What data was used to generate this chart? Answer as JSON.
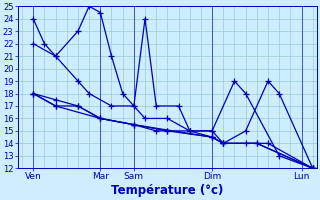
{
  "title": "Température (°c)",
  "bg_color": "#cceeff",
  "line_color": "#0000bb",
  "grid_color": "#99cccc",
  "ylim": [
    12,
    25
  ],
  "yticks": [
    12,
    13,
    14,
    15,
    16,
    17,
    18,
    19,
    20,
    21,
    22,
    23,
    24,
    25
  ],
  "xlim": [
    -0.2,
    13.2
  ],
  "x_tick_positions": [
    0.5,
    3.5,
    5.0,
    8.5,
    12.5
  ],
  "x_tick_labels": [
    "Ven",
    "Mar",
    "Sam",
    "Dim",
    "Lun"
  ],
  "xlabel": "Température (°c)",
  "marker": "+",
  "markersize": 4,
  "linewidth": 0.9,
  "series_x": [
    [
      0.5,
      1.0,
      1.5,
      2.5,
      3.0,
      3.5,
      4.0,
      4.5,
      5.0,
      5.5,
      6.0,
      7.0,
      7.5,
      8.5,
      9.5,
      10.0,
      11.5,
      13.0
    ],
    [
      0.5,
      1.5,
      2.5,
      3.0,
      4.0,
      5.0,
      5.5,
      6.5,
      7.5,
      8.5,
      9.0,
      10.0,
      11.0,
      11.5,
      13.0
    ],
    [
      0.5,
      1.5,
      2.5,
      3.5,
      5.0,
      6.0,
      6.5,
      7.5,
      8.5,
      9.0,
      10.0,
      11.0,
      13.0
    ],
    [
      0.5,
      1.5,
      2.5,
      3.5,
      5.0,
      6.5,
      8.5,
      9.0,
      10.5,
      13.0
    ],
    [
      0.5,
      1.5,
      3.5,
      5.0,
      8.5,
      9.0,
      10.5,
      13.0
    ]
  ],
  "series_y": [
    [
      24,
      22,
      21,
      23,
      25,
      24.5,
      21,
      18,
      17,
      24,
      17,
      17,
      15,
      15,
      19,
      18,
      13,
      12
    ],
    [
      22,
      21,
      19,
      18,
      17,
      17,
      16,
      16,
      15,
      15,
      14,
      15,
      19,
      18,
      12
    ],
    [
      18,
      17.5,
      17,
      16,
      15.5,
      15,
      15,
      15,
      14.5,
      14,
      14,
      14,
      12
    ],
    [
      18,
      17,
      17,
      16,
      15.5,
      15,
      14.5,
      14,
      14,
      12
    ],
    [
      18,
      17,
      16,
      15.5,
      14.5,
      14,
      14,
      12
    ]
  ]
}
